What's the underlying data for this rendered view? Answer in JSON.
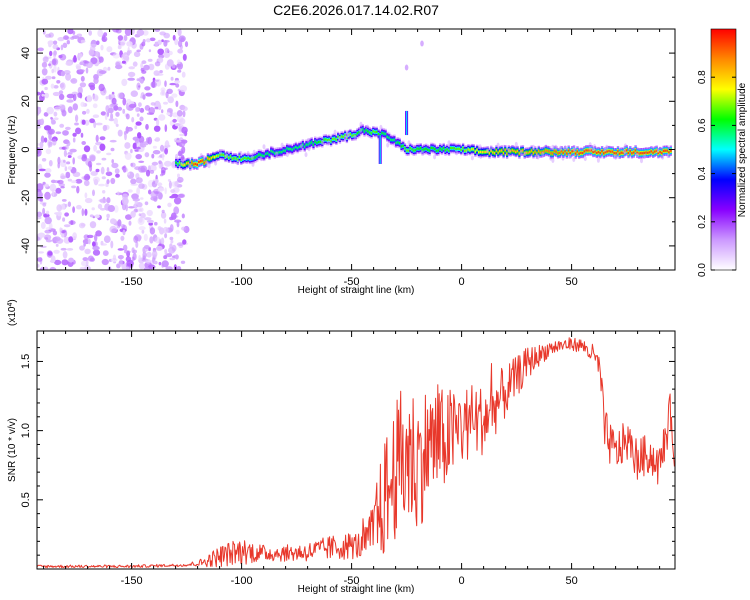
{
  "title": "C2E6.2026.017.14.02.R07",
  "chart_data": [
    {
      "type": "heatmap",
      "xlabel": "Height of straight line (km)",
      "ylabel": "Frequency (Hz)",
      "xlim": [
        -193,
        97
      ],
      "ylim": [
        -50,
        50
      ],
      "xticks": [
        -150,
        -100,
        -50,
        0,
        50
      ],
      "xtick_labels": [
        "-150",
        "-100",
        "-50",
        "0",
        "50"
      ],
      "yticks": [
        -40,
        -20,
        0,
        20,
        40
      ],
      "ytick_labels": [
        "-40",
        "-20",
        "0",
        "20",
        "40"
      ],
      "colorbar": {
        "label": "Normalized spectral amplitude",
        "range": [
          0,
          1
        ],
        "ticks": [
          0.0,
          0.2,
          0.4,
          0.6,
          0.8
        ],
        "tick_labels": [
          "0.0",
          "0.2",
          "0.4",
          "0.6",
          "0.8"
        ],
        "colors": [
          "#ffffff",
          "#cc99ff",
          "#8800ff",
          "#0000ff",
          "#00ffff",
          "#00ff00",
          "#ffff00",
          "#ff8800",
          "#ff0000"
        ]
      },
      "noise_region": {
        "x": [
          -193,
          -125
        ],
        "y": [
          -50,
          50
        ],
        "amplitude": 0.15
      },
      "ridge": {
        "x": [
          -130,
          -120,
          -110,
          -100,
          -90,
          -80,
          -70,
          -60,
          -50,
          -45,
          -40,
          -35,
          -30,
          -25,
          -20,
          -10,
          0,
          10,
          20,
          30,
          40,
          50,
          60,
          70,
          80,
          90,
          95
        ],
        "y": [
          -6,
          -6,
          -2,
          -4,
          -2,
          0,
          2,
          4,
          6,
          8,
          7,
          6,
          3,
          0,
          0,
          0,
          0,
          -1,
          -1,
          -1,
          -1,
          -1,
          -1,
          -1,
          -1,
          -1,
          -1
        ],
        "amplitude": [
          0.55,
          0.9,
          0.6,
          0.6,
          0.5,
          0.5,
          0.5,
          0.6,
          0.6,
          0.5,
          0.6,
          0.5,
          0.5,
          0.6,
          0.55,
          0.55,
          0.6,
          0.7,
          0.75,
          0.75,
          0.8,
          0.85,
          0.85,
          0.85,
          0.85,
          0.85,
          0.85
        ]
      },
      "spurs": [
        {
          "x": -37,
          "y": [
            -6,
            6
          ]
        },
        {
          "x": -25,
          "y": [
            6,
            16
          ]
        }
      ],
      "faint_points": [
        {
          "x": -25,
          "y": 34
        },
        {
          "x": -18,
          "y": 44
        }
      ]
    },
    {
      "type": "line",
      "xlabel": "Height of straight line (km)",
      "ylabel": "SNR (10 * v/v)",
      "scale_label": "(x10",
      "scale_exponent": "4",
      "xlim": [
        -193,
        97
      ],
      "ylim": [
        0,
        1.72
      ],
      "xticks": [
        -150,
        -100,
        -50,
        0,
        50
      ],
      "xtick_labels": [
        "-150",
        "-100",
        "-50",
        "0",
        "50"
      ],
      "yticks": [
        0.5,
        1.0,
        1.5
      ],
      "ytick_labels": [
        "0.5",
        "1.0",
        "1.5"
      ],
      "color": "#e8382b",
      "series": [
        {
          "x": [
            -193,
            -150,
            -125,
            -118,
            -110,
            -100,
            -90,
            -80,
            -70,
            -60,
            -50,
            -45,
            -40,
            -35,
            -30,
            -25,
            -20,
            -15,
            -10,
            -5,
            0,
            5,
            10,
            15,
            20,
            25,
            30,
            35,
            40,
            45,
            50,
            55,
            60,
            63,
            65,
            70,
            75,
            80,
            85,
            90,
            95,
            97
          ],
          "y": [
            0.02,
            0.02,
            0.03,
            0.05,
            0.1,
            0.14,
            0.12,
            0.12,
            0.13,
            0.16,
            0.18,
            0.18,
            0.3,
            0.55,
            0.75,
            0.9,
            0.8,
            0.95,
            0.95,
            1.0,
            1.05,
            1.1,
            1.1,
            1.2,
            1.3,
            1.4,
            1.5,
            1.55,
            1.6,
            1.62,
            1.63,
            1.62,
            1.55,
            1.45,
            1.0,
            0.85,
            0.95,
            0.8,
            0.85,
            0.75,
            1.15,
            0.8
          ],
          "amplitude": [
            0.01,
            0.01,
            0.01,
            0.03,
            0.08,
            0.1,
            0.06,
            0.06,
            0.07,
            0.09,
            0.1,
            0.1,
            0.2,
            0.45,
            0.5,
            0.6,
            0.5,
            0.45,
            0.4,
            0.35,
            0.3,
            0.28,
            0.25,
            0.22,
            0.2,
            0.15,
            0.12,
            0.08,
            0.06,
            0.05,
            0.05,
            0.05,
            0.08,
            0.1,
            0.18,
            0.15,
            0.15,
            0.15,
            0.15,
            0.15,
            0.15,
            0.1
          ]
        }
      ]
    }
  ]
}
